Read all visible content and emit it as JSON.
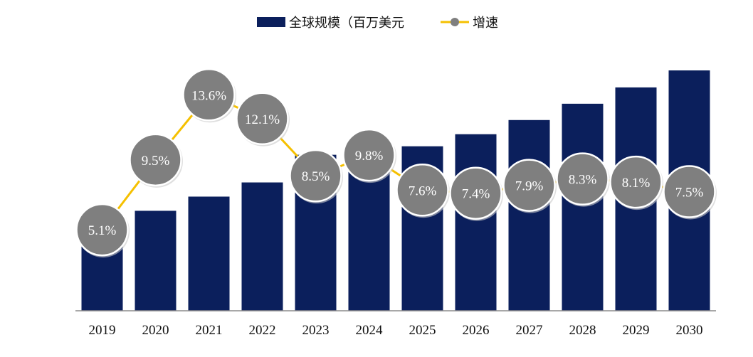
{
  "chart_data": {
    "type": "bar",
    "categories": [
      "2019",
      "2020",
      "2021",
      "2022",
      "2023",
      "2024",
      "2025",
      "2026",
      "2027",
      "2028",
      "2029",
      "2030"
    ],
    "series": [
      {
        "name": "全球规模（百万美元",
        "kind": "bar",
        "color": "#0b1f5c",
        "values": [
          117,
          141,
          161,
          181,
          220,
          217,
          232,
          249,
          269,
          292,
          315,
          339
        ]
      },
      {
        "name": "增速",
        "kind": "line",
        "line_color": "#f5c000",
        "marker_color": "#7f7f7f",
        "values": [
          5.1,
          9.5,
          13.6,
          12.1,
          8.5,
          9.8,
          7.6,
          7.4,
          7.9,
          8.3,
          8.1,
          7.5
        ],
        "labels": [
          "5.1%",
          "9.5%",
          "13.6%",
          "12.1%",
          "8.5%",
          "9.8%",
          "7.6%",
          "7.4%",
          "7.9%",
          "8.3%",
          "8.1%",
          "7.5%"
        ]
      }
    ],
    "legend": [
      "全球规模（百万美元",
      "增速"
    ],
    "legend_position": "top",
    "ylim": [
      0,
      340
    ],
    "y2lim": [
      0,
      18
    ],
    "grid": false
  }
}
